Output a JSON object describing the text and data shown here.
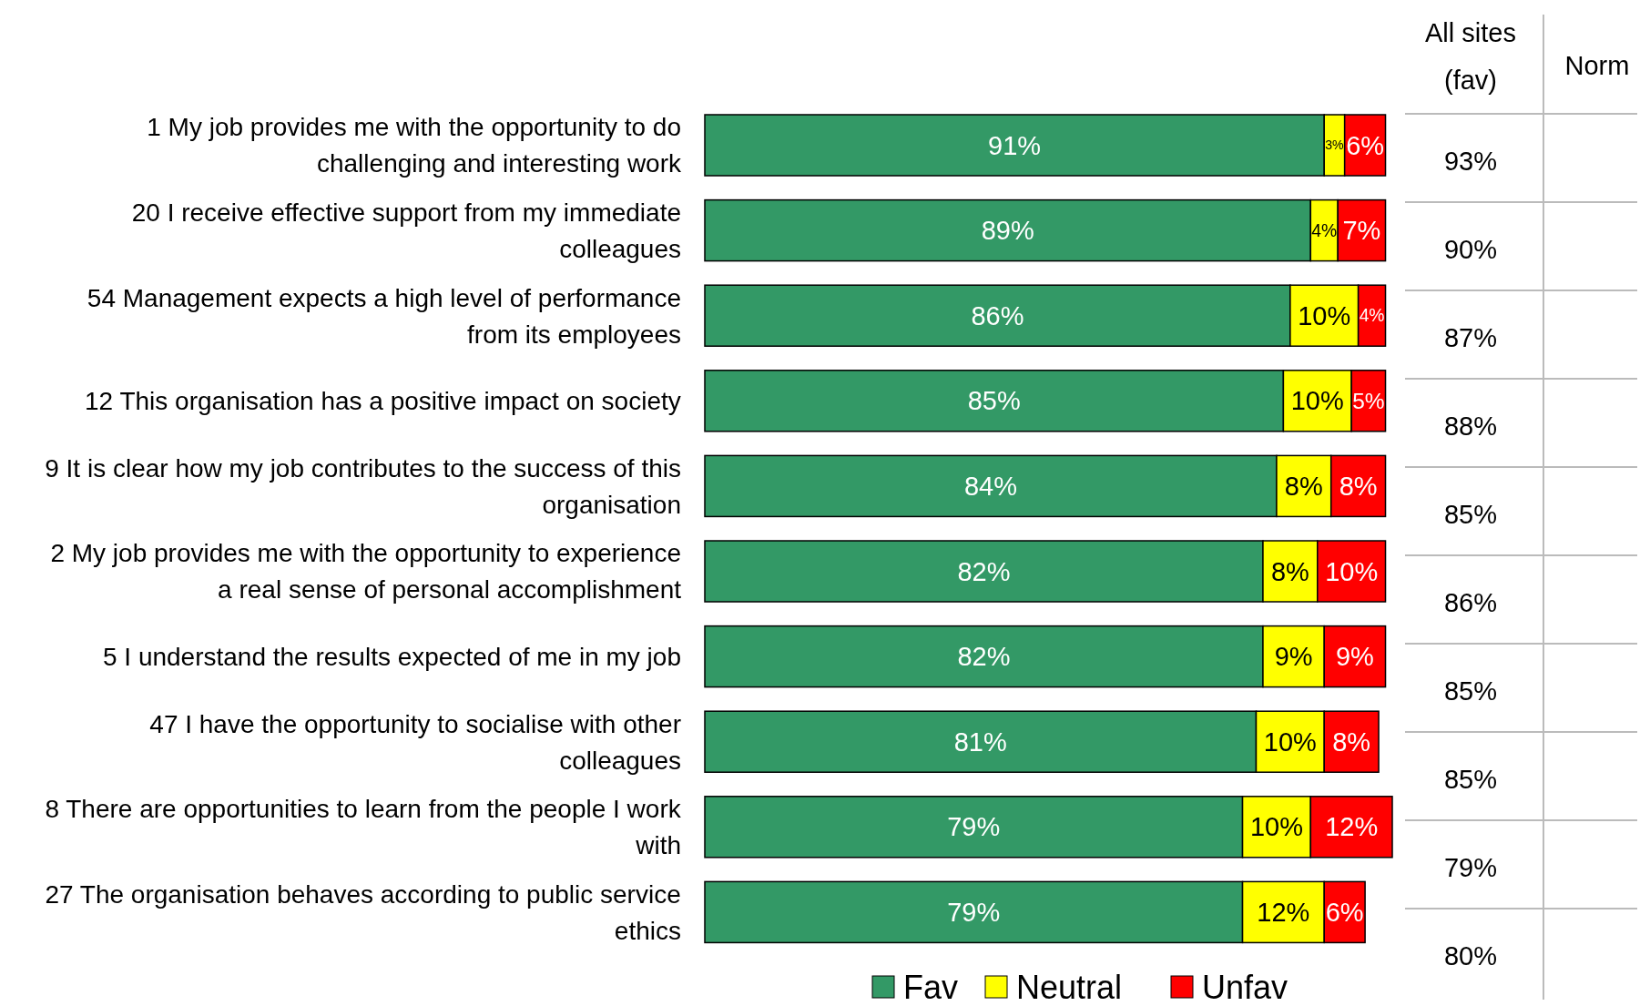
{
  "chart_data": {
    "type": "bar",
    "orientation": "horizontal",
    "stacked": true,
    "categories": [
      "1 My job provides me with the opportunity to do challenging and interesting work",
      "20 I receive effective support from my immediate colleagues",
      "54 Management expects a high level of performance from its employees",
      "12 This organisation has a positive impact on society",
      "9 It is clear how my job contributes to the success of this organisation",
      "2 My job provides me with the opportunity to experience a real sense of personal accomplishment",
      "5 I understand the results expected of me in my job",
      "47 I have the opportunity to socialise with other colleagues",
      "8 There are opportunities to learn from the people I work with",
      "27 The organisation behaves according to public service ethics"
    ],
    "series": [
      {
        "name": "Fav",
        "color": "#339966",
        "values": [
          91,
          89,
          86,
          85,
          84,
          82,
          82,
          81,
          79,
          79
        ],
        "value_labels": [
          "91%",
          "89%",
          "86%",
          "85%",
          "84%",
          "82%",
          "82%",
          "81%",
          "79%",
          "79%"
        ]
      },
      {
        "name": "Neutral",
        "color": "#ffff00",
        "values": [
          3,
          4,
          10,
          10,
          8,
          8,
          9,
          10,
          10,
          12
        ],
        "value_labels": [
          "3%",
          "4%",
          "10%",
          "10%",
          "8%",
          "8%",
          "9%",
          "10%",
          "10%",
          "12%"
        ]
      },
      {
        "name": "Unfav",
        "color": "#ff0000",
        "values": [
          6,
          7,
          4,
          5,
          8,
          10,
          9,
          8,
          12,
          6
        ],
        "value_labels": [
          "6%",
          "7%",
          "4%",
          "5%",
          "8%",
          "10%",
          "9%",
          "8%",
          "12%",
          "6%"
        ]
      }
    ],
    "xlim": [
      0,
      101
    ],
    "tick_labels": "y",
    "legend": "bottom",
    "annotations": [
      "All sites (fav)",
      "Norm",
      "93%",
      "90%",
      "87%",
      "88%",
      "85%",
      "86%",
      "85%",
      "85%",
      "79%",
      "80%"
    ]
  }
}
